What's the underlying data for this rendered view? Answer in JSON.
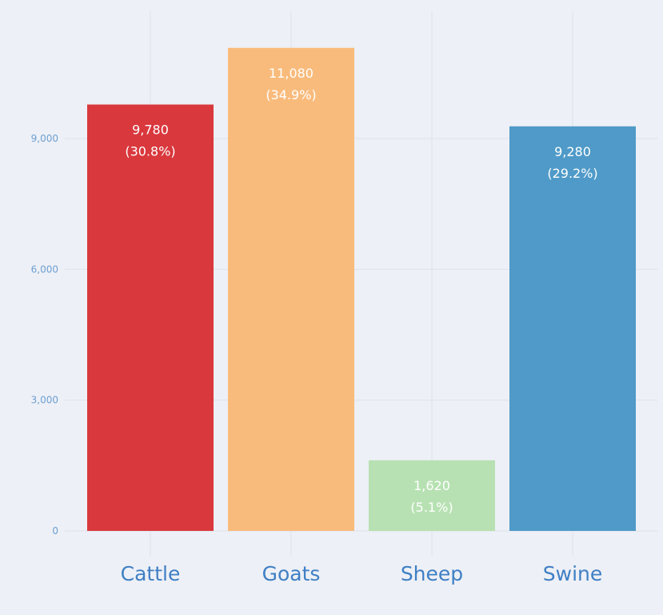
{
  "chart_data": {
    "type": "bar",
    "categories": [
      "Cattle",
      "Goats",
      "Sheep",
      "Swine"
    ],
    "values": [
      9780,
      11080,
      1620,
      9280
    ],
    "value_labels": [
      "9,780",
      "11,080",
      "1,620",
      "9,280"
    ],
    "percent_labels": [
      "(30.8%)",
      "(34.9%)",
      "(5.1%)",
      "(29.2%)"
    ],
    "colors": [
      "#d9383d",
      "#f9bb7c",
      "#b7e1b2",
      "#4f9ac8"
    ],
    "yticks": [
      0,
      3000,
      6000,
      9000
    ],
    "ytick_labels": [
      "0",
      "3,000",
      "6,000",
      "9,000"
    ],
    "ylim": [
      0,
      11700
    ],
    "grid": true,
    "legend": "none"
  }
}
